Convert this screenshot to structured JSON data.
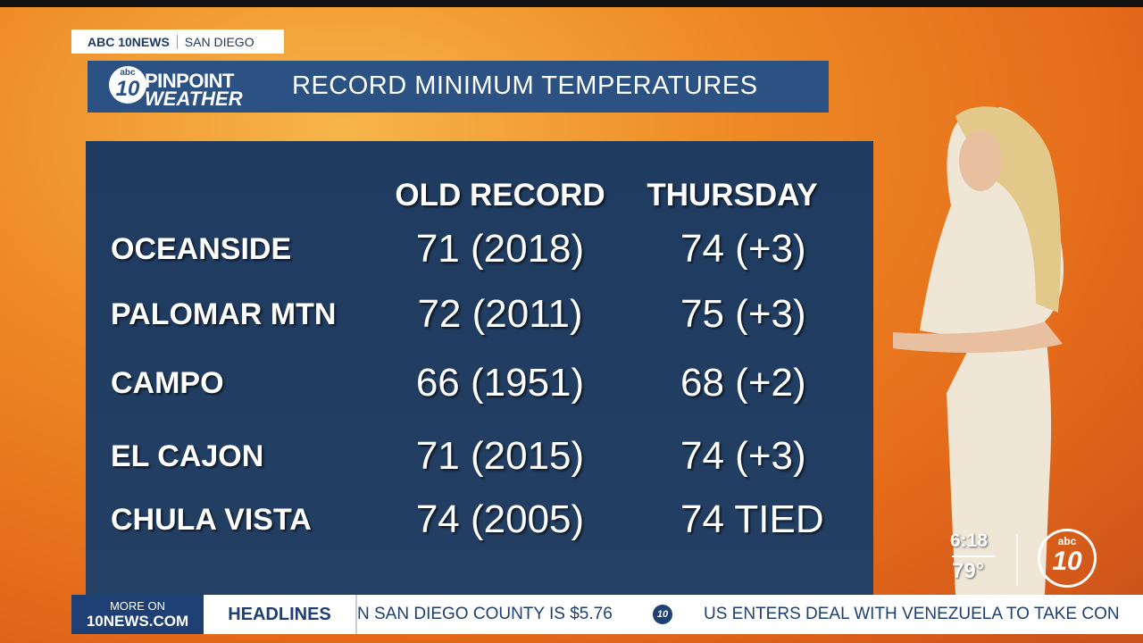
{
  "header": {
    "network": "ABC 10NEWS",
    "city": "SAN DIEGO",
    "logo_abc": "abc",
    "logo_ten": "10",
    "brand_top": "PINPOINT",
    "brand_bottom": "WEATHER",
    "title": "RECORD MINIMUM TEMPERATURES"
  },
  "table": {
    "columns": [
      "OLD RECORD",
      "THURSDAY"
    ],
    "rows": [
      [
        "OCEANSIDE",
        "71 (2018)",
        "74 (+3)"
      ],
      [
        "PALOMAR MTN",
        "72 (2011)",
        "75 (+3)"
      ],
      [
        "CAMPO",
        "66 (1951)",
        "68 (+2)"
      ],
      [
        "EL CAJON",
        "71 (2015)",
        "74 (+3)"
      ],
      [
        "CHULA VISTA",
        "74 (2005)",
        "74 TIED"
      ]
    ]
  },
  "status": {
    "time": "6:18",
    "temperature": "79°",
    "logo_abc": "abc",
    "logo_ten": "10"
  },
  "ticker": {
    "more_on": "MORE ON",
    "site": "10NEWS.COM",
    "label": "HEADLINES",
    "items": [
      "N SAN DIEGO COUNTY IS $5.76",
      "US ENTERS DEAL WITH VENEZUELA TO TAKE CON"
    ],
    "separator_logo": "10"
  }
}
